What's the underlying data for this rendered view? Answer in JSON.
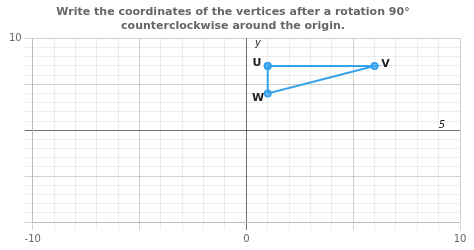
{
  "chart_data": {
    "type": "polygon",
    "title": "Write the coordinates of the vertices after a rotation 90° counterclockwise around the origin.",
    "x": [
      1,
      6,
      1
    ],
    "values": [
      7,
      7,
      4
    ],
    "point_labels": [
      "U",
      "V",
      "W"
    ],
    "xlim": [
      -10,
      10
    ],
    "ylim": [
      -10,
      10
    ],
    "xticks": [
      -10,
      0,
      10
    ],
    "yticks": [
      10
    ],
    "grid": true,
    "annotations": [
      {
        "text": "y",
        "x": 0.4,
        "y": 9.5
      },
      {
        "text": "5",
        "x": 9,
        "y": 0.5
      }
    ]
  }
}
